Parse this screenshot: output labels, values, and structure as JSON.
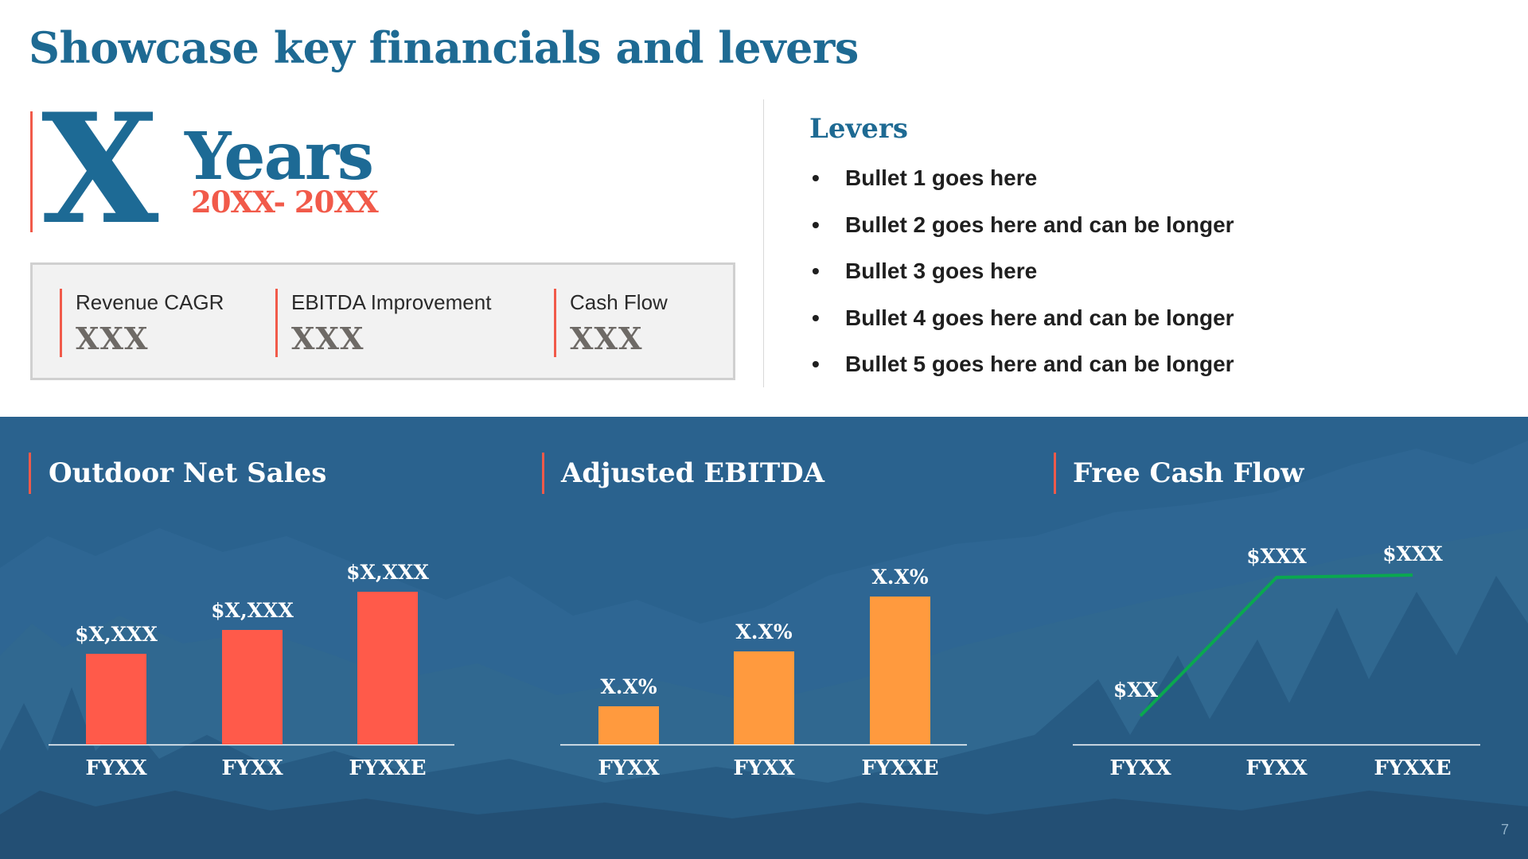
{
  "title": "Showcase key financials and levers",
  "years": {
    "big_letter": "X",
    "word": "Years",
    "range": "20XX- 20XX"
  },
  "metrics": [
    {
      "label": "Revenue CAGR",
      "value": "XXX"
    },
    {
      "label": "EBITDA Improvement",
      "value": "XXX"
    },
    {
      "label": "Cash Flow",
      "value": "XXX"
    }
  ],
  "levers": {
    "heading": "Levers",
    "bullet_glyph": "•",
    "items": [
      "Bullet 1 goes here",
      "Bullet 2 goes here and can be longer",
      "Bullet 3 goes here",
      "Bullet 4 goes here and can be longer",
      "Bullet 5 goes here and can be longer"
    ]
  },
  "colors": {
    "title_blue": "#1e6a93",
    "accent_red": "#f15a4a",
    "band_blue": "#2a628e",
    "bar_red": "#ff5a4a",
    "bar_orange": "#ff9a3e",
    "line_green": "#0aa84f"
  },
  "chart_data": [
    {
      "type": "bar",
      "title": "Outdoor Net Sales",
      "categories": [
        "FYXX",
        "FYXX",
        "FYXXE"
      ],
      "values": [
        38,
        48,
        64
      ],
      "data_labels": [
        "$X,XXX",
        "$X,XXX",
        "$X,XXX"
      ],
      "ylim": [
        0,
        100
      ],
      "color": "#ff5a4a"
    },
    {
      "type": "bar",
      "title": "Adjusted EBITDA",
      "categories": [
        "FYXX",
        "FYXX",
        "FYXXE"
      ],
      "values": [
        16,
        39,
        62
      ],
      "data_labels": [
        "X.X%",
        "X.X%",
        "X.X%"
      ],
      "ylim": [
        0,
        100
      ],
      "color": "#ff9a3e"
    },
    {
      "type": "line",
      "title": "Free Cash Flow",
      "categories": [
        "FYXX",
        "FYXX",
        "FYXXE"
      ],
      "values": [
        12,
        70,
        71
      ],
      "data_labels": [
        "$XX",
        "$XXX",
        "$XXX"
      ],
      "ylim": [
        0,
        100
      ],
      "color": "#0aa84f"
    }
  ],
  "page_number": "7"
}
